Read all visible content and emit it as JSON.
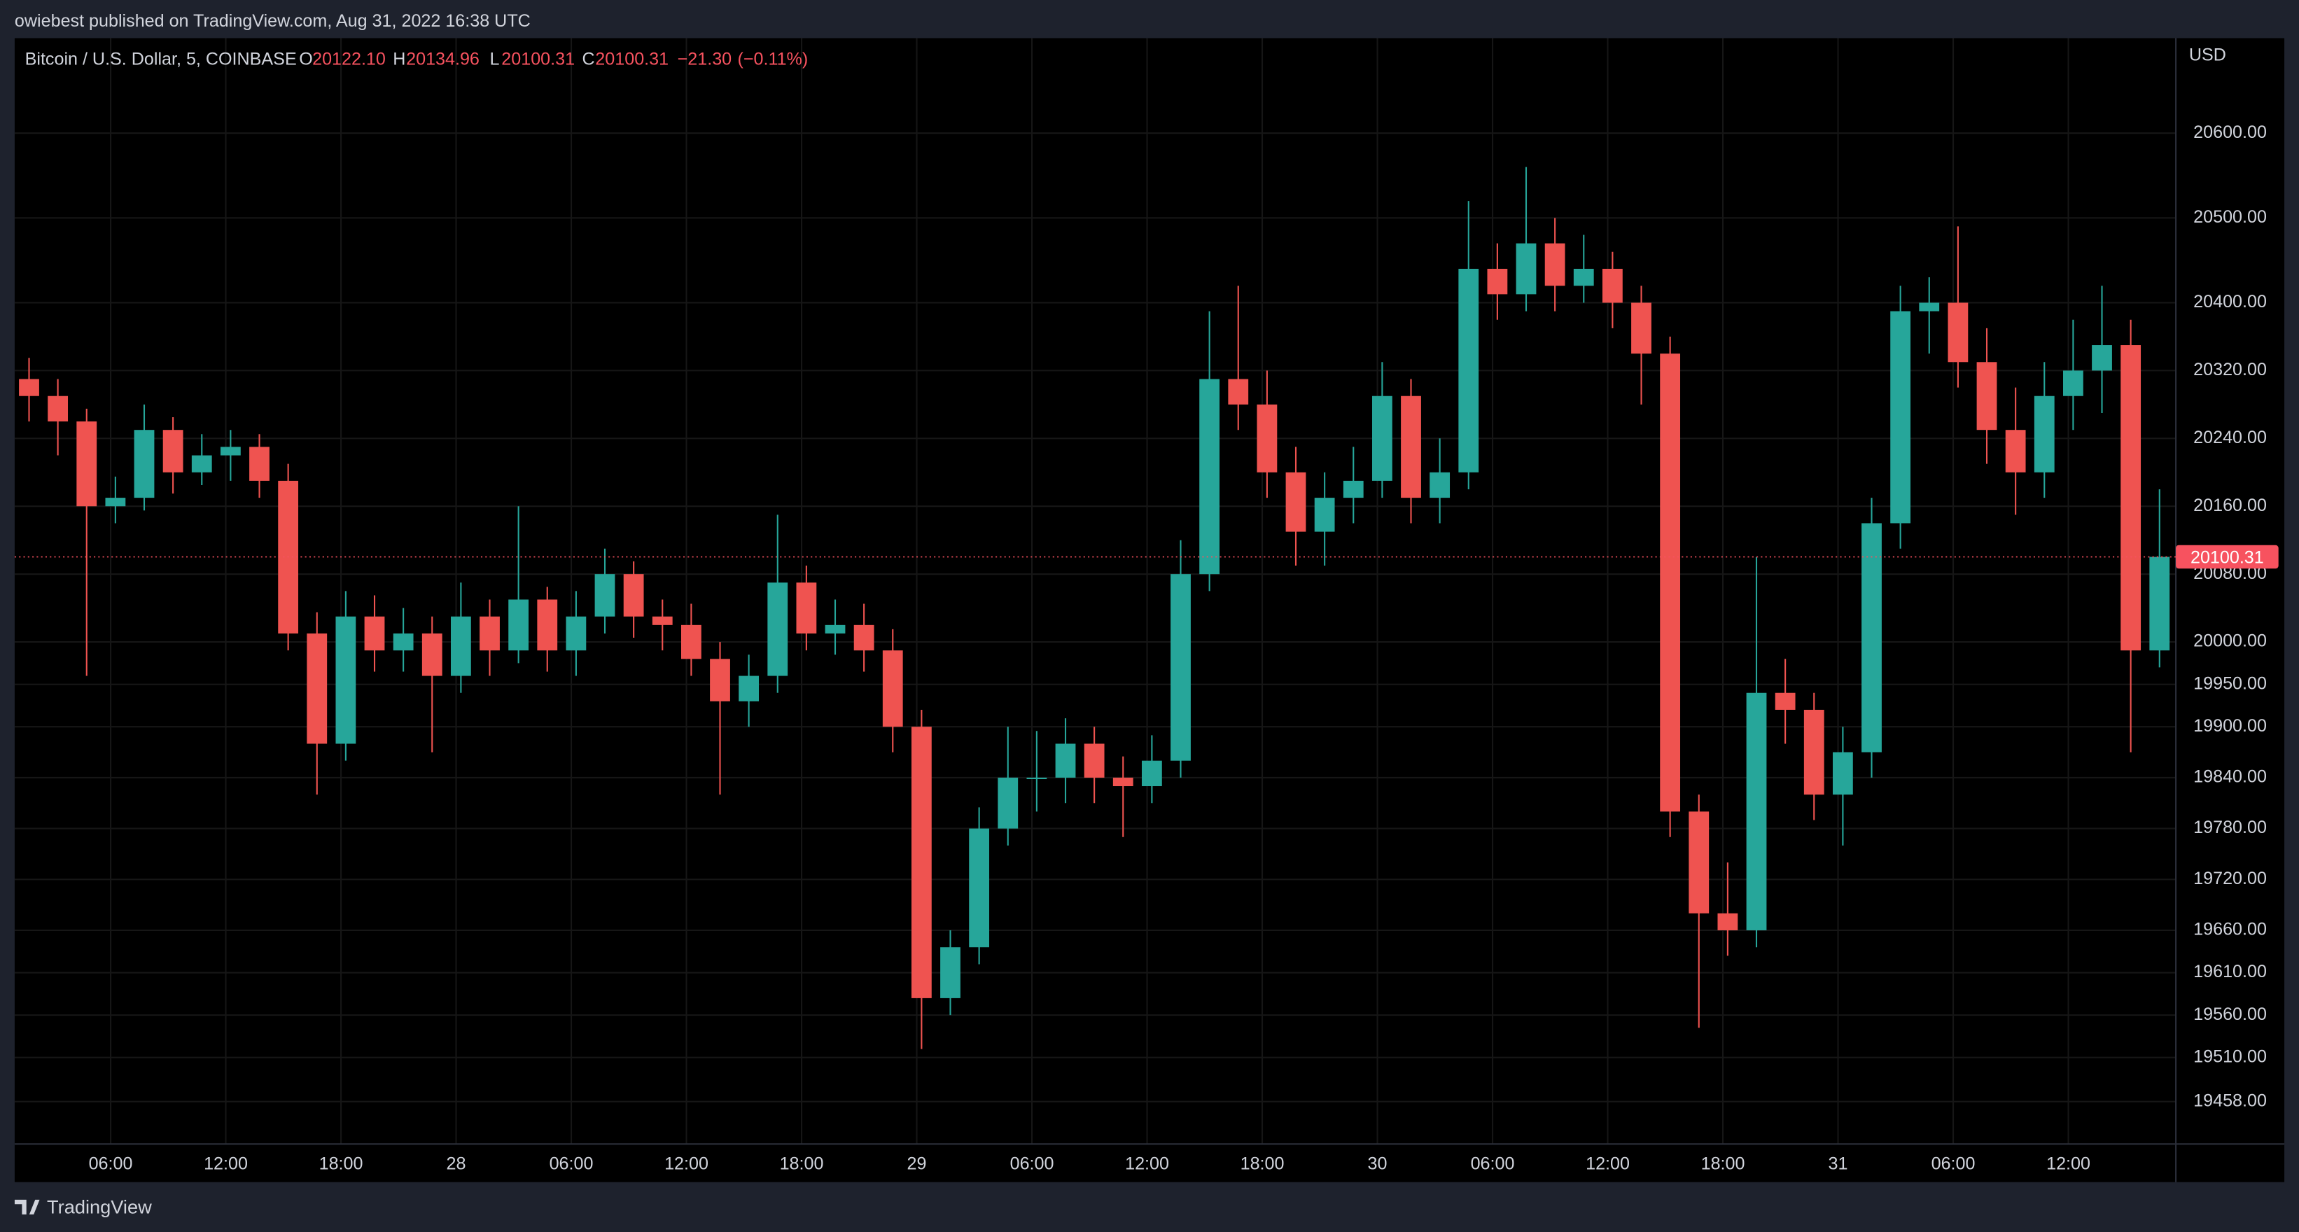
{
  "header": {
    "publisher": "owiebest published on TradingView.com, Aug 31, 2022 16:38 UTC"
  },
  "footer": {
    "brand": "TradingView"
  },
  "chart_data": {
    "type": "candlestick",
    "symbol": "Bitcoin / U.S. Dollar, 5, COINBASE",
    "legend": {
      "open_label": "O",
      "open": {
        "value": 20122.1,
        "label": "20122.10"
      },
      "high_label": "H",
      "high": {
        "value": 20134.96,
        "label": "20134.96"
      },
      "low_label": "L",
      "low": {
        "value": 20100.31,
        "label": "20100.31"
      },
      "close_label": "C",
      "close": {
        "value": 20100.31,
        "label": "20100.31"
      },
      "change": {
        "value": -21.3,
        "label": "−21.30"
      },
      "change_pct": {
        "value": -0.11,
        "label": "(−0.11%)"
      }
    },
    "y_axis_label": "USD",
    "up_color": "#26a69a",
    "down_color": "#ef5350",
    "last_price_color": "#f7525f",
    "grid": true,
    "last_price": 20100.31,
    "xlim": [
      0,
      112.6
    ],
    "xticks": [
      {
        "value": 5,
        "label": "06:00"
      },
      {
        "value": 11,
        "label": "12:00"
      },
      {
        "value": 17,
        "label": "18:00"
      },
      {
        "value": 23,
        "label": "28"
      },
      {
        "value": 29,
        "label": "06:00"
      },
      {
        "value": 35,
        "label": "12:00"
      },
      {
        "value": 41,
        "label": "18:00"
      },
      {
        "value": 47,
        "label": "29"
      },
      {
        "value": 53,
        "label": "06:00"
      },
      {
        "value": 59,
        "label": "12:00"
      },
      {
        "value": 65,
        "label": "18:00"
      },
      {
        "value": 71,
        "label": "30"
      },
      {
        "value": 77,
        "label": "06:00"
      },
      {
        "value": 83,
        "label": "12:00"
      },
      {
        "value": 89,
        "label": "18:00"
      },
      {
        "value": 95,
        "label": "31"
      },
      {
        "value": 101,
        "label": "06:00"
      },
      {
        "value": 107,
        "label": "12:00"
      }
    ],
    "ylim": [
      19408,
      20712
    ],
    "yticks": [
      {
        "value": 20600,
        "label": "20600.00"
      },
      {
        "value": 20500,
        "label": "20500.00"
      },
      {
        "value": 20400,
        "label": "20400.00"
      },
      {
        "value": 20320,
        "label": "20320.00"
      },
      {
        "value": 20240,
        "label": "20240.00"
      },
      {
        "value": 20160,
        "label": "20160.00"
      },
      {
        "value": 20080,
        "label": "20080.00"
      },
      {
        "value": 20000,
        "label": "20000.00"
      },
      {
        "value": 19950,
        "label": "19950.00"
      },
      {
        "value": 19900,
        "label": "19900.00"
      },
      {
        "value": 19840,
        "label": "19840.00"
      },
      {
        "value": 19780,
        "label": "19780.00"
      },
      {
        "value": 19720,
        "label": "19720.00"
      },
      {
        "value": 19660,
        "label": "19660.00"
      },
      {
        "value": 19610,
        "label": "19610.00"
      },
      {
        "value": 19560,
        "label": "19560.00"
      },
      {
        "value": 19510,
        "label": "19510.00"
      },
      {
        "value": 19458,
        "label": "19458.00"
      }
    ],
    "x": [
      0.75,
      2.25,
      3.75,
      5.25,
      6.75,
      8.25,
      9.75,
      11.25,
      12.75,
      14.25,
      15.75,
      17.25,
      18.75,
      20.25,
      21.75,
      23.25,
      24.75,
      26.25,
      27.75,
      29.25,
      30.75,
      32.25,
      33.75,
      35.25,
      36.75,
      38.25,
      39.75,
      41.25,
      42.75,
      44.25,
      45.75,
      47.25,
      48.75,
      50.25,
      51.75,
      53.25,
      54.75,
      56.25,
      57.75,
      59.25,
      60.75,
      62.25,
      63.75,
      65.25,
      66.75,
      68.25,
      69.75,
      71.25,
      72.75,
      74.25,
      75.75,
      77.25,
      78.75,
      80.25,
      81.75,
      83.25,
      84.75,
      86.25,
      87.75,
      89.25,
      90.75,
      92.25,
      93.75,
      95.25,
      96.75,
      98.25,
      99.75,
      101.25,
      102.75,
      104.25,
      105.75,
      107.25,
      108.75,
      110.25,
      111.75
    ],
    "open": [
      20310,
      20290,
      20260,
      20160,
      20170,
      20250,
      20200,
      20220,
      20230,
      20190,
      20010,
      19880,
      20030,
      19990,
      20010,
      19960,
      20030,
      19990,
      20050,
      19990,
      20030,
      20080,
      20030,
      20020,
      19980,
      19930,
      19960,
      20070,
      20010,
      20020,
      19990,
      19900,
      19580,
      19640,
      19780,
      19840,
      19840,
      19880,
      19840,
      19830,
      19860,
      20080,
      20310,
      20280,
      20200,
      20130,
      20170,
      20190,
      20290,
      20170,
      20200,
      20440,
      20410,
      20470,
      20420,
      20440,
      20400,
      20340,
      19800,
      19680,
      19660,
      19940,
      19920,
      19820,
      19870,
      20140,
      20390,
      20400,
      20330,
      20250,
      20200,
      20290,
      20320,
      20350,
      19990
    ],
    "high": [
      20335,
      20310,
      20275,
      20195,
      20280,
      20265,
      20245,
      20250,
      20245,
      20210,
      20035,
      20060,
      20055,
      20040,
      20030,
      20070,
      20050,
      20160,
      20065,
      20060,
      20110,
      20095,
      20050,
      20045,
      20000,
      19985,
      20150,
      20090,
      20050,
      20045,
      20015,
      19920,
      19660,
      19805,
      19900,
      19895,
      19910,
      19900,
      19865,
      19890,
      20120,
      20390,
      20420,
      20320,
      20230,
      20200,
      20230,
      20330,
      20310,
      20240,
      20520,
      20470,
      20560,
      20500,
      20480,
      20460,
      20420,
      20360,
      19820,
      19740,
      20100,
      19980,
      19940,
      19900,
      20170,
      20420,
      20430,
      20490,
      20370,
      20300,
      20330,
      20380,
      20420,
      20380,
      20180
    ],
    "low": [
      20260,
      20220,
      19960,
      20140,
      20155,
      20175,
      20185,
      20190,
      20170,
      19990,
      19820,
      19860,
      19965,
      19965,
      19870,
      19940,
      19960,
      19975,
      19965,
      19960,
      20010,
      20005,
      19990,
      19960,
      19820,
      19900,
      19940,
      19990,
      19985,
      19965,
      19870,
      19520,
      19560,
      19620,
      19760,
      19800,
      19810,
      19810,
      19770,
      19810,
      19840,
      20060,
      20250,
      20170,
      20090,
      20090,
      20140,
      20170,
      20140,
      20140,
      20180,
      20380,
      20390,
      20390,
      20400,
      20370,
      20280,
      19770,
      19545,
      19630,
      19640,
      19880,
      19790,
      19760,
      19840,
      20110,
      20340,
      20300,
      20210,
      20150,
      20170,
      20250,
      20270,
      19870,
      19970
    ],
    "close": [
      20290,
      20260,
      20160,
      20170,
      20250,
      20200,
      20220,
      20230,
      20190,
      20010,
      19880,
      20030,
      19990,
      20010,
      19960,
      20030,
      19990,
      20050,
      19990,
      20030,
      20080,
      20030,
      20020,
      19980,
      19930,
      19960,
      20070,
      20010,
      20020,
      19990,
      19900,
      19580,
      19640,
      19780,
      19840,
      19840,
      19880,
      19840,
      19830,
      19860,
      20080,
      20310,
      20280,
      20200,
      20130,
      20170,
      20190,
      20290,
      20170,
      20200,
      20440,
      20410,
      20470,
      20420,
      20440,
      20400,
      20340,
      19800,
      19680,
      19660,
      19940,
      19920,
      19820,
      19870,
      20140,
      20390,
      20400,
      20330,
      20250,
      20200,
      20290,
      20320,
      20350,
      19990,
      20100.31
    ]
  }
}
